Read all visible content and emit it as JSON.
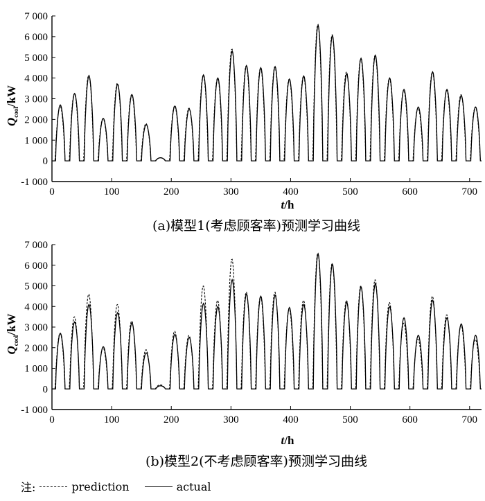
{
  "chart_data": [
    {
      "type": "line",
      "panel": "a",
      "caption": "(a)模型1(考虑顾客率)预测学习曲线",
      "xlabel_italic": "t",
      "xlabel_unit": "/h",
      "ylabel_main": "Q",
      "ylabel_sub": "cool",
      "ylabel_unit": "/kW",
      "xlim": [
        0,
        720
      ],
      "ylim": [
        -1000,
        7000
      ],
      "xticks": [
        0,
        100,
        200,
        300,
        400,
        500,
        600,
        700
      ],
      "xtick_labels": [
        "0",
        "100",
        "200",
        "300",
        "400",
        "500",
        "600",
        "700"
      ],
      "yticks": [
        -1000,
        0,
        1000,
        2000,
        3000,
        4000,
        5000,
        6000,
        7000
      ],
      "ytick_labels": [
        "-1 000",
        "0",
        "1 000",
        "2 000",
        "3 000",
        "4 000",
        "5 000",
        "6 000",
        "7 000"
      ],
      "series": [
        {
          "name": "prediction",
          "style": "dashed",
          "daily_peaks": [
            2650,
            3250,
            4150,
            2050,
            3750,
            3200,
            1800,
            150,
            2650,
            2550,
            4150,
            4000,
            5400,
            4600,
            4500,
            4550,
            3950,
            4100,
            6600,
            6100,
            4300,
            4950,
            5100,
            4000,
            3400,
            2550,
            4300,
            3400,
            3200,
            2600
          ]
        },
        {
          "name": "actual",
          "style": "solid",
          "daily_peaks": [
            2700,
            3250,
            4100,
            2050,
            3700,
            3200,
            1750,
            150,
            2650,
            2500,
            4150,
            4000,
            5300,
            4600,
            4500,
            4550,
            3950,
            4100,
            6550,
            6050,
            4200,
            4950,
            5100,
            4000,
            3450,
            2600,
            4300,
            3450,
            3150,
            2600
          ]
        }
      ]
    },
    {
      "type": "line",
      "panel": "b",
      "caption": "(b)模型2(不考虑顾客率)预测学习曲线",
      "xlabel_italic": "t",
      "xlabel_unit": "/h",
      "ylabel_main": "Q",
      "ylabel_sub": "cool",
      "ylabel_unit": "/kW",
      "xlim": [
        0,
        720
      ],
      "ylim": [
        -1000,
        7000
      ],
      "xticks": [
        0,
        100,
        200,
        300,
        400,
        500,
        600,
        700
      ],
      "xtick_labels": [
        "0",
        "100",
        "200",
        "300",
        "400",
        "500",
        "600",
        "700"
      ],
      "yticks": [
        -1000,
        0,
        1000,
        2000,
        3000,
        4000,
        5000,
        6000,
        7000
      ],
      "ytick_labels": [
        "-1 000",
        "0",
        "1 000",
        "2 000",
        "3 000",
        "4 000",
        "5 000",
        "6 000",
        "7 000"
      ],
      "series": [
        {
          "name": "prediction",
          "style": "dashed",
          "daily_peaks": [
            2700,
            3500,
            4600,
            2000,
            4100,
            3300,
            1900,
            200,
            2800,
            2600,
            5000,
            4300,
            6300,
            4700,
            4500,
            4700,
            3900,
            4300,
            6600,
            6100,
            4300,
            5000,
            5300,
            4200,
            3200,
            2400,
            4500,
            3600,
            3100,
            2400
          ]
        },
        {
          "name": "actual",
          "style": "solid",
          "daily_peaks": [
            2700,
            3250,
            4100,
            2050,
            3700,
            3200,
            1750,
            150,
            2650,
            2500,
            4150,
            4000,
            5300,
            4600,
            4500,
            4550,
            3950,
            4100,
            6550,
            6050,
            4200,
            4950,
            5100,
            4000,
            3450,
            2600,
            4300,
            3450,
            3150,
            2600
          ]
        }
      ]
    }
  ],
  "legend": {
    "prefix": "注:",
    "items": [
      {
        "label": "prediction",
        "style": "dashed"
      },
      {
        "label": "actual",
        "style": "solid"
      }
    ]
  }
}
